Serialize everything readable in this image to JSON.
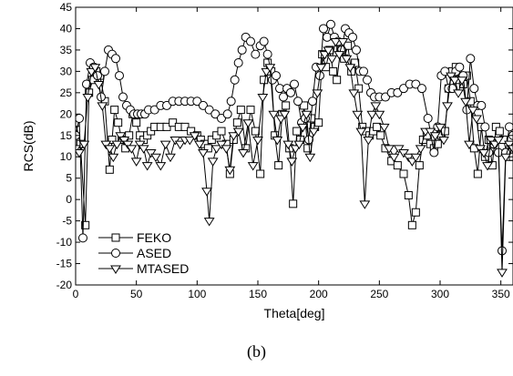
{
  "caption": "(b)",
  "chart_data": {
    "type": "line",
    "xlabel": "Theta[deg]",
    "ylabel": "RCS(dB)",
    "xlim": [
      0,
      360
    ],
    "ylim": [
      -20,
      45
    ],
    "xticks": [
      0,
      50,
      100,
      150,
      200,
      250,
      300,
      350
    ],
    "yticks": [
      -20,
      -15,
      -10,
      -5,
      0,
      5,
      10,
      15,
      20,
      25,
      30,
      35,
      40,
      45
    ],
    "grid": false,
    "legend_position": "bottom-left",
    "series": [
      {
        "name": "FEKO",
        "marker": "square",
        "x": [
          0,
          4,
          8,
          11,
          14,
          17,
          20,
          24,
          28,
          30,
          32,
          35,
          38,
          41,
          44,
          47,
          50,
          53,
          56,
          59,
          62,
          65,
          70,
          75,
          80,
          85,
          90,
          95,
          100,
          103,
          106,
          109,
          112,
          116,
          120,
          124,
          127,
          130,
          133,
          136,
          140,
          144,
          148,
          152,
          155,
          158,
          161,
          164,
          167,
          170,
          173,
          176,
          179,
          182,
          185,
          188,
          191,
          194,
          197,
          200,
          203,
          206,
          209,
          212,
          215,
          218,
          221,
          224,
          227,
          230,
          233,
          236,
          239,
          242,
          245,
          248,
          251,
          255,
          260,
          265,
          270,
          274,
          277,
          280,
          283,
          286,
          289,
          292,
          295,
          298,
          301,
          304,
          307,
          310,
          313,
          316,
          319,
          322,
          325,
          328,
          331,
          334,
          337,
          340,
          343,
          346,
          349,
          352,
          355,
          358,
          360
        ],
        "y": [
          18,
          13,
          -6,
          25,
          28,
          30,
          29,
          23,
          7,
          14,
          21,
          18,
          14,
          12,
          15,
          20,
          18,
          15,
          14,
          15,
          16,
          17,
          17,
          17,
          18,
          17,
          17,
          16,
          15,
          14,
          13,
          12,
          14,
          15,
          16,
          13,
          6,
          14,
          18,
          21,
          12,
          21,
          16,
          6,
          28,
          32,
          30,
          15,
          8,
          20,
          22,
          12,
          -1,
          16,
          14,
          22,
          12,
          19,
          17,
          18,
          34,
          31,
          35,
          30,
          28,
          35,
          33,
          36,
          30,
          32,
          26,
          17,
          16,
          15,
          16,
          17,
          15,
          12,
          9,
          8,
          6,
          1,
          -6,
          -3,
          8,
          14,
          15,
          13,
          12,
          13,
          15,
          16,
          26,
          30,
          31,
          28,
          27,
          29,
          23,
          12,
          6,
          17,
          10,
          14,
          8,
          17,
          16,
          14,
          11,
          10,
          10
        ]
      },
      {
        "name": "ASED",
        "marker": "circle",
        "x": [
          0,
          3,
          6,
          9,
          12,
          15,
          18,
          21,
          24,
          27,
          30,
          33,
          36,
          39,
          42,
          45,
          48,
          51,
          54,
          57,
          60,
          65,
          70,
          75,
          80,
          85,
          90,
          95,
          100,
          105,
          110,
          115,
          120,
          125,
          128,
          131,
          134,
          137,
          140,
          144,
          148,
          152,
          155,
          158,
          162,
          165,
          168,
          171,
          174,
          177,
          180,
          183,
          186,
          189,
          192,
          195,
          198,
          201,
          204,
          207,
          210,
          213,
          216,
          219,
          222,
          225,
          228,
          231,
          234,
          237,
          240,
          243,
          246,
          250,
          255,
          260,
          265,
          270,
          275,
          280,
          285,
          290,
          295,
          298,
          301,
          304,
          307,
          310,
          313,
          316,
          319,
          322,
          325,
          328,
          331,
          334,
          337,
          340,
          344,
          348,
          351,
          354,
          357,
          360
        ],
        "y": [
          15,
          19,
          -9,
          27,
          32,
          31,
          29,
          24,
          30,
          35,
          34,
          33,
          29,
          24,
          22,
          21,
          20,
          20,
          20,
          20,
          21,
          21,
          22,
          22,
          23,
          23,
          23,
          23,
          23,
          22,
          21,
          20,
          19,
          20,
          23,
          28,
          32,
          35,
          38,
          37,
          34,
          36,
          37,
          34,
          28,
          29,
          26,
          24,
          26,
          25,
          27,
          23,
          18,
          19,
          14,
          23,
          31,
          29,
          40,
          38,
          41,
          38,
          37,
          35,
          40,
          39,
          38,
          35,
          30,
          30,
          28,
          25,
          24,
          24,
          24,
          25,
          25,
          26,
          27,
          27,
          26,
          19,
          11,
          17,
          29,
          30,
          26,
          26,
          30,
          31,
          29,
          21,
          33,
          26,
          22,
          22,
          17,
          11,
          13,
          11,
          -12,
          11,
          17,
          15
        ]
      },
      {
        "name": "MTASED",
        "marker": "triangle",
        "x": [
          0,
          3,
          7,
          10,
          13,
          16,
          19,
          22,
          25,
          28,
          31,
          34,
          37,
          40,
          43,
          46,
          50,
          53,
          56,
          59,
          62,
          66,
          70,
          74,
          78,
          82,
          86,
          90,
          94,
          98,
          102,
          105,
          108,
          110,
          113,
          116,
          120,
          124,
          127,
          130,
          134,
          138,
          142,
          146,
          150,
          154,
          157,
          160,
          163,
          166,
          169,
          172,
          175,
          178,
          181,
          184,
          187,
          190,
          193,
          196,
          199,
          202,
          205,
          208,
          211,
          214,
          217,
          220,
          223,
          226,
          229,
          232,
          235,
          238,
          241,
          244,
          247,
          250,
          254,
          258,
          262,
          266,
          270,
          274,
          277,
          280,
          284,
          288,
          292,
          296,
          300,
          303,
          306,
          309,
          312,
          315,
          318,
          321,
          324,
          327,
          330,
          333,
          336,
          339,
          342,
          345,
          348,
          351,
          354,
          357,
          360
        ],
        "y": [
          12,
          11,
          13,
          24,
          30,
          31,
          27,
          22,
          13,
          12,
          10,
          13,
          15,
          14,
          13,
          12,
          9,
          13,
          12,
          8,
          11,
          10,
          8,
          13,
          10,
          14,
          13,
          14,
          14,
          15,
          13,
          11,
          2,
          -5,
          9,
          12,
          13,
          12,
          7,
          15,
          16,
          11,
          18,
          8,
          14,
          24,
          30,
          31,
          20,
          14,
          19,
          20,
          13,
          9,
          12,
          13,
          17,
          20,
          10,
          16,
          25,
          31,
          34,
          35,
          33,
          37,
          34,
          37,
          33,
          31,
          25,
          20,
          16,
          -1,
          14,
          20,
          22,
          20,
          17,
          12,
          10,
          12,
          11,
          10,
          9,
          10,
          12,
          16,
          16,
          15,
          17,
          14,
          22,
          29,
          28,
          25,
          28,
          23,
          13,
          21,
          19,
          12,
          11,
          8,
          14,
          13,
          14,
          -17,
          10,
          13,
          12
        ]
      }
    ]
  }
}
